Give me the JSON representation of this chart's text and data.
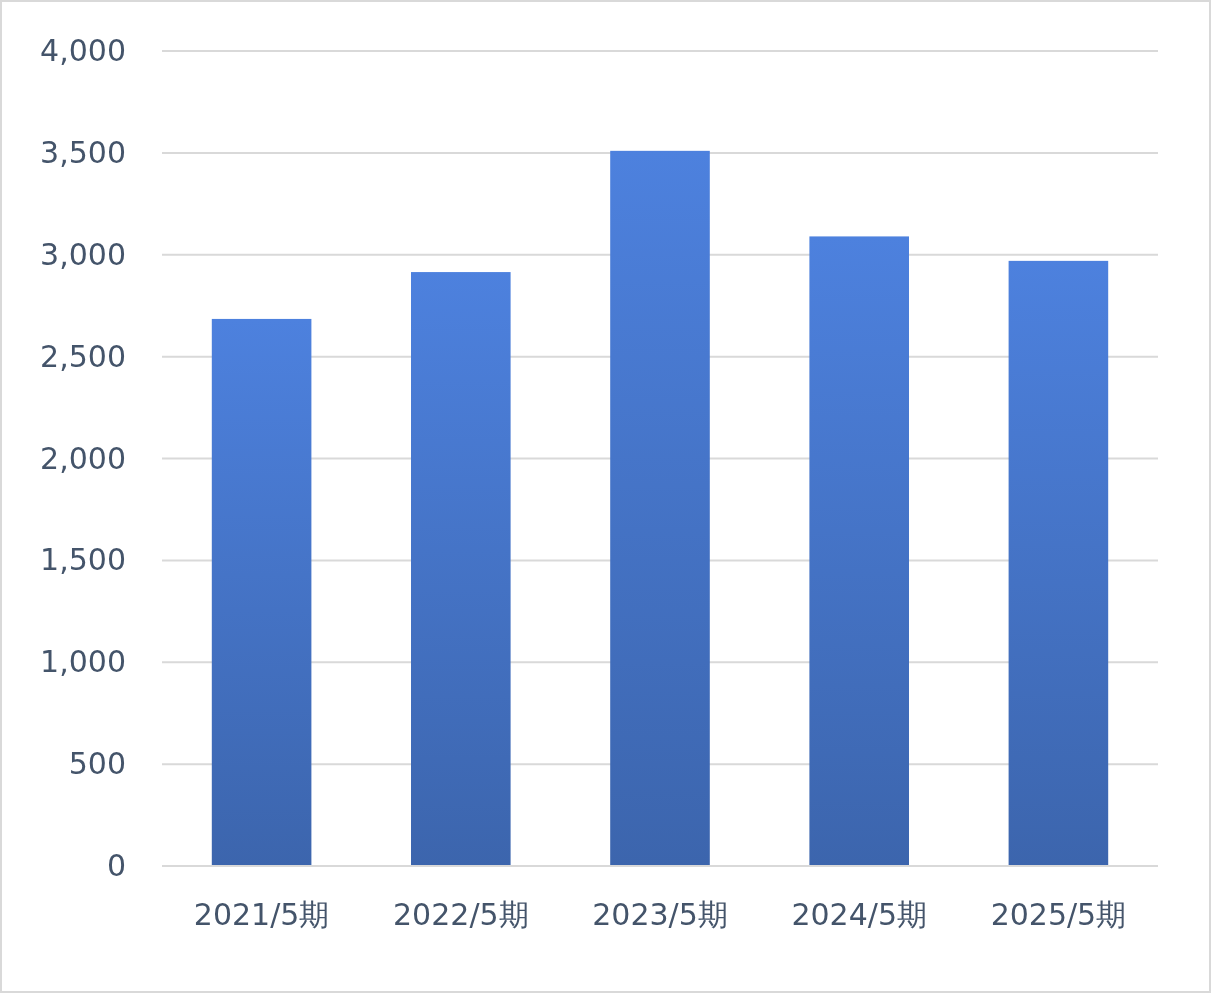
{
  "chart_data": {
    "type": "bar",
    "categories": [
      "2021/5期",
      "2022/5期",
      "2023/5期",
      "2024/5期",
      "2025/5期"
    ],
    "values": [
      2685,
      2915,
      3510,
      3090,
      2970
    ],
    "color": "#4472c4",
    "ylim": [
      0,
      4000
    ],
    "yticks": [
      {
        "value": 0,
        "label": "0"
      },
      {
        "value": 500,
        "label": "500"
      },
      {
        "value": 1000,
        "label": "1,000"
      },
      {
        "value": 1500,
        "label": "1,500"
      },
      {
        "value": 2000,
        "label": "2,000"
      },
      {
        "value": 2500,
        "label": "2,500"
      },
      {
        "value": 3000,
        "label": "3,000"
      },
      {
        "value": 3500,
        "label": "3,500"
      },
      {
        "value": 4000,
        "label": "4,000"
      }
    ],
    "grid": "y"
  }
}
